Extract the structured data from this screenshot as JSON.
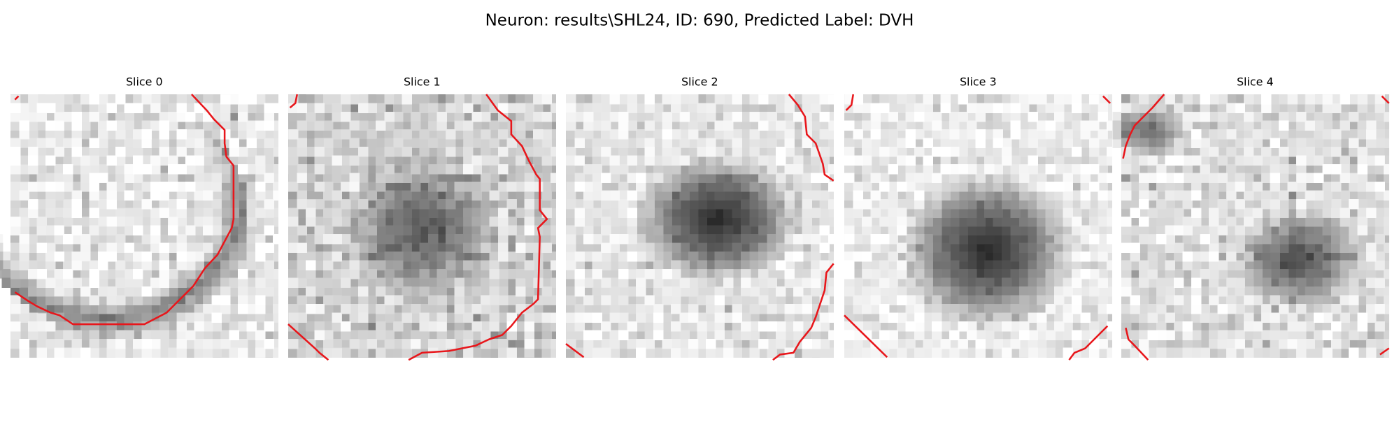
{
  "title": "Neuron: results\\SHL24, ID: 690, Predicted Label: DVH",
  "panels": [
    {
      "title": "Slice 0"
    },
    {
      "title": "Slice 1"
    },
    {
      "title": "Slice 2"
    },
    {
      "title": "Slice 3"
    },
    {
      "title": "Slice 4"
    }
  ]
}
